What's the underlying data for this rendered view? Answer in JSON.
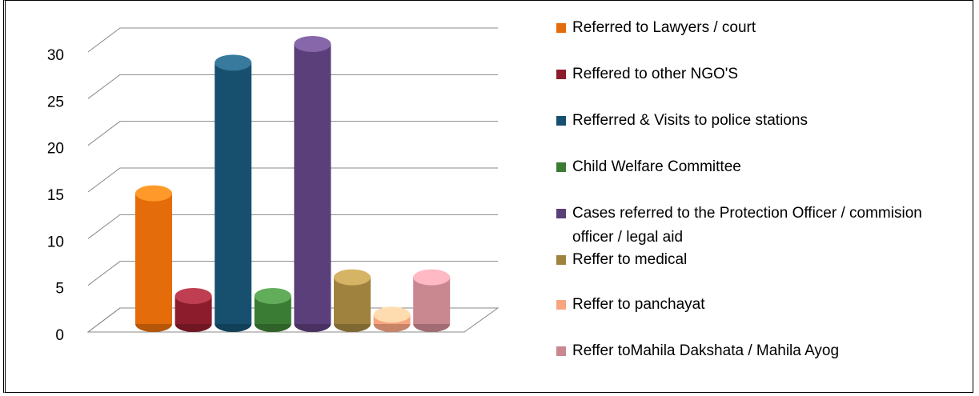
{
  "chart_data": {
    "type": "bar3d",
    "ylim": [
      0,
      30
    ],
    "yticks": [
      0,
      5,
      10,
      15,
      20,
      25,
      30
    ],
    "grid": true,
    "series": [
      {
        "name": "Referred to Lawyers / court",
        "color": "#e46c0a",
        "values": [
          14
        ]
      },
      {
        "name": "Reffered to other NGO'S",
        "color": "#8c1c2c",
        "values": [
          3
        ]
      },
      {
        "name": "Refferred & Visits to police stations",
        "color": "#17506f",
        "values": [
          28
        ]
      },
      {
        "name": "Child Welfare Committee",
        "color": "#3b7c34",
        "values": [
          3
        ]
      },
      {
        "name": "Cases referred to the Protection Officer / commision officer / legal aid",
        "color": "#5b3f7a",
        "values": [
          30
        ]
      },
      {
        "name": "Reffer to medical",
        "color": "#a0823f",
        "values": [
          5
        ]
      },
      {
        "name": "Reffer to panchayat",
        "color": "#f9a57f",
        "values": [
          1
        ]
      },
      {
        "name": "Reffer toMahila Dakshata / Mahila Ayog",
        "color": "#c98790",
        "values": [
          5
        ]
      }
    ]
  }
}
